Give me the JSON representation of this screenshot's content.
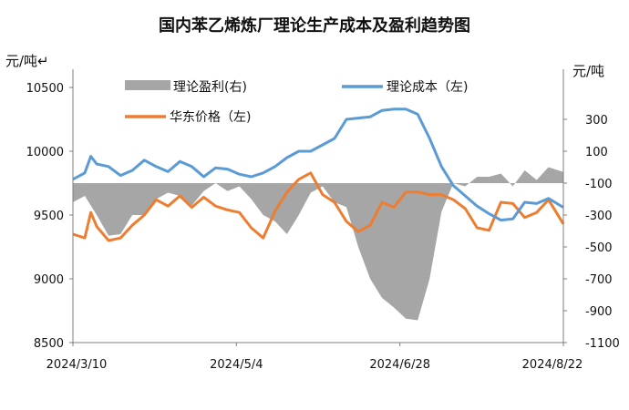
{
  "chart_data": {
    "type": "line",
    "title": "国内苯乙烯炼厂理论生产成本及盈利趋势图",
    "y_left_label": "元/吨↵",
    "y_right_label": "元/吨",
    "y_left_range": [
      8500,
      10500
    ],
    "y_left_ticks": [
      "10500",
      "10000",
      "9500",
      "9000",
      "8500"
    ],
    "y_right_range": [
      -1100,
      500
    ],
    "y_right_ticks": [
      "300",
      "100",
      "-100",
      "-300",
      "-500",
      "-700",
      "-900",
      "-1100"
    ],
    "x_ticks": [
      "2024/3/10",
      "2024/5/4",
      "2024/6/28",
      "2024/8/22"
    ],
    "x_range": [
      0,
      165
    ],
    "legend": [
      "理论盈利(右)",
      "理论成本（左)",
      "华东价格（左)"
    ],
    "colors": {
      "profit": "#a6a6a6",
      "cost": "#5b9bd5",
      "price": "#ed7d31"
    },
    "series": [
      {
        "name": "理论盈利(右)",
        "axis": "right",
        "type": "area",
        "x": [
          0,
          4,
          8,
          12,
          16,
          20,
          24,
          28,
          32,
          36,
          40,
          44,
          48,
          52,
          56,
          60,
          64,
          68,
          72,
          76,
          80,
          84,
          88,
          92,
          96,
          100,
          104,
          108,
          112,
          116,
          120,
          124,
          128,
          132,
          136,
          140,
          144,
          148,
          152,
          156,
          160,
          165
        ],
        "values": [
          -220,
          -180,
          -300,
          -430,
          -420,
          -300,
          -300,
          -200,
          -160,
          -180,
          -240,
          -150,
          -100,
          -150,
          -120,
          -200,
          -300,
          -340,
          -420,
          -300,
          -160,
          -120,
          -220,
          -250,
          -500,
          -700,
          -820,
          -880,
          -950,
          -960,
          -700,
          -280,
          -100,
          -120,
          -60,
          -60,
          -40,
          -120,
          -20,
          -80,
          0,
          -30
        ]
      },
      {
        "name": "理论成本（左)",
        "axis": "left",
        "type": "line",
        "x": [
          0,
          4,
          6,
          8,
          12,
          16,
          20,
          24,
          28,
          32,
          36,
          40,
          44,
          48,
          52,
          56,
          60,
          64,
          68,
          72,
          76,
          80,
          84,
          88,
          92,
          96,
          100,
          104,
          108,
          112,
          116,
          120,
          124,
          128,
          132,
          136,
          140,
          144,
          148,
          152,
          156,
          160,
          165
        ],
        "values": [
          9780,
          9830,
          9960,
          9900,
          9880,
          9810,
          9850,
          9930,
          9880,
          9840,
          9920,
          9880,
          9800,
          9870,
          9860,
          9820,
          9800,
          9830,
          9880,
          9950,
          10000,
          10000,
          10050,
          10100,
          10250,
          10260,
          10270,
          10320,
          10330,
          10330,
          10290,
          10100,
          9880,
          9730,
          9650,
          9570,
          9510,
          9460,
          9470,
          9600,
          9590,
          9630,
          9560
        ]
      },
      {
        "name": "华东价格（左)",
        "axis": "left",
        "type": "line",
        "x": [
          0,
          4,
          6,
          8,
          12,
          16,
          20,
          24,
          28,
          32,
          36,
          40,
          44,
          48,
          52,
          56,
          60,
          64,
          68,
          72,
          76,
          80,
          84,
          88,
          92,
          96,
          100,
          104,
          108,
          112,
          116,
          120,
          124,
          128,
          132,
          136,
          140,
          144,
          148,
          152,
          156,
          160,
          165
        ],
        "values": [
          9350,
          9320,
          9520,
          9410,
          9300,
          9320,
          9420,
          9500,
          9620,
          9570,
          9650,
          9560,
          9640,
          9570,
          9540,
          9520,
          9400,
          9320,
          9530,
          9680,
          9780,
          9830,
          9660,
          9600,
          9450,
          9370,
          9420,
          9600,
          9560,
          9680,
          9680,
          9660,
          9660,
          9620,
          9550,
          9400,
          9380,
          9600,
          9590,
          9480,
          9520,
          9620,
          9430
        ]
      }
    ]
  }
}
